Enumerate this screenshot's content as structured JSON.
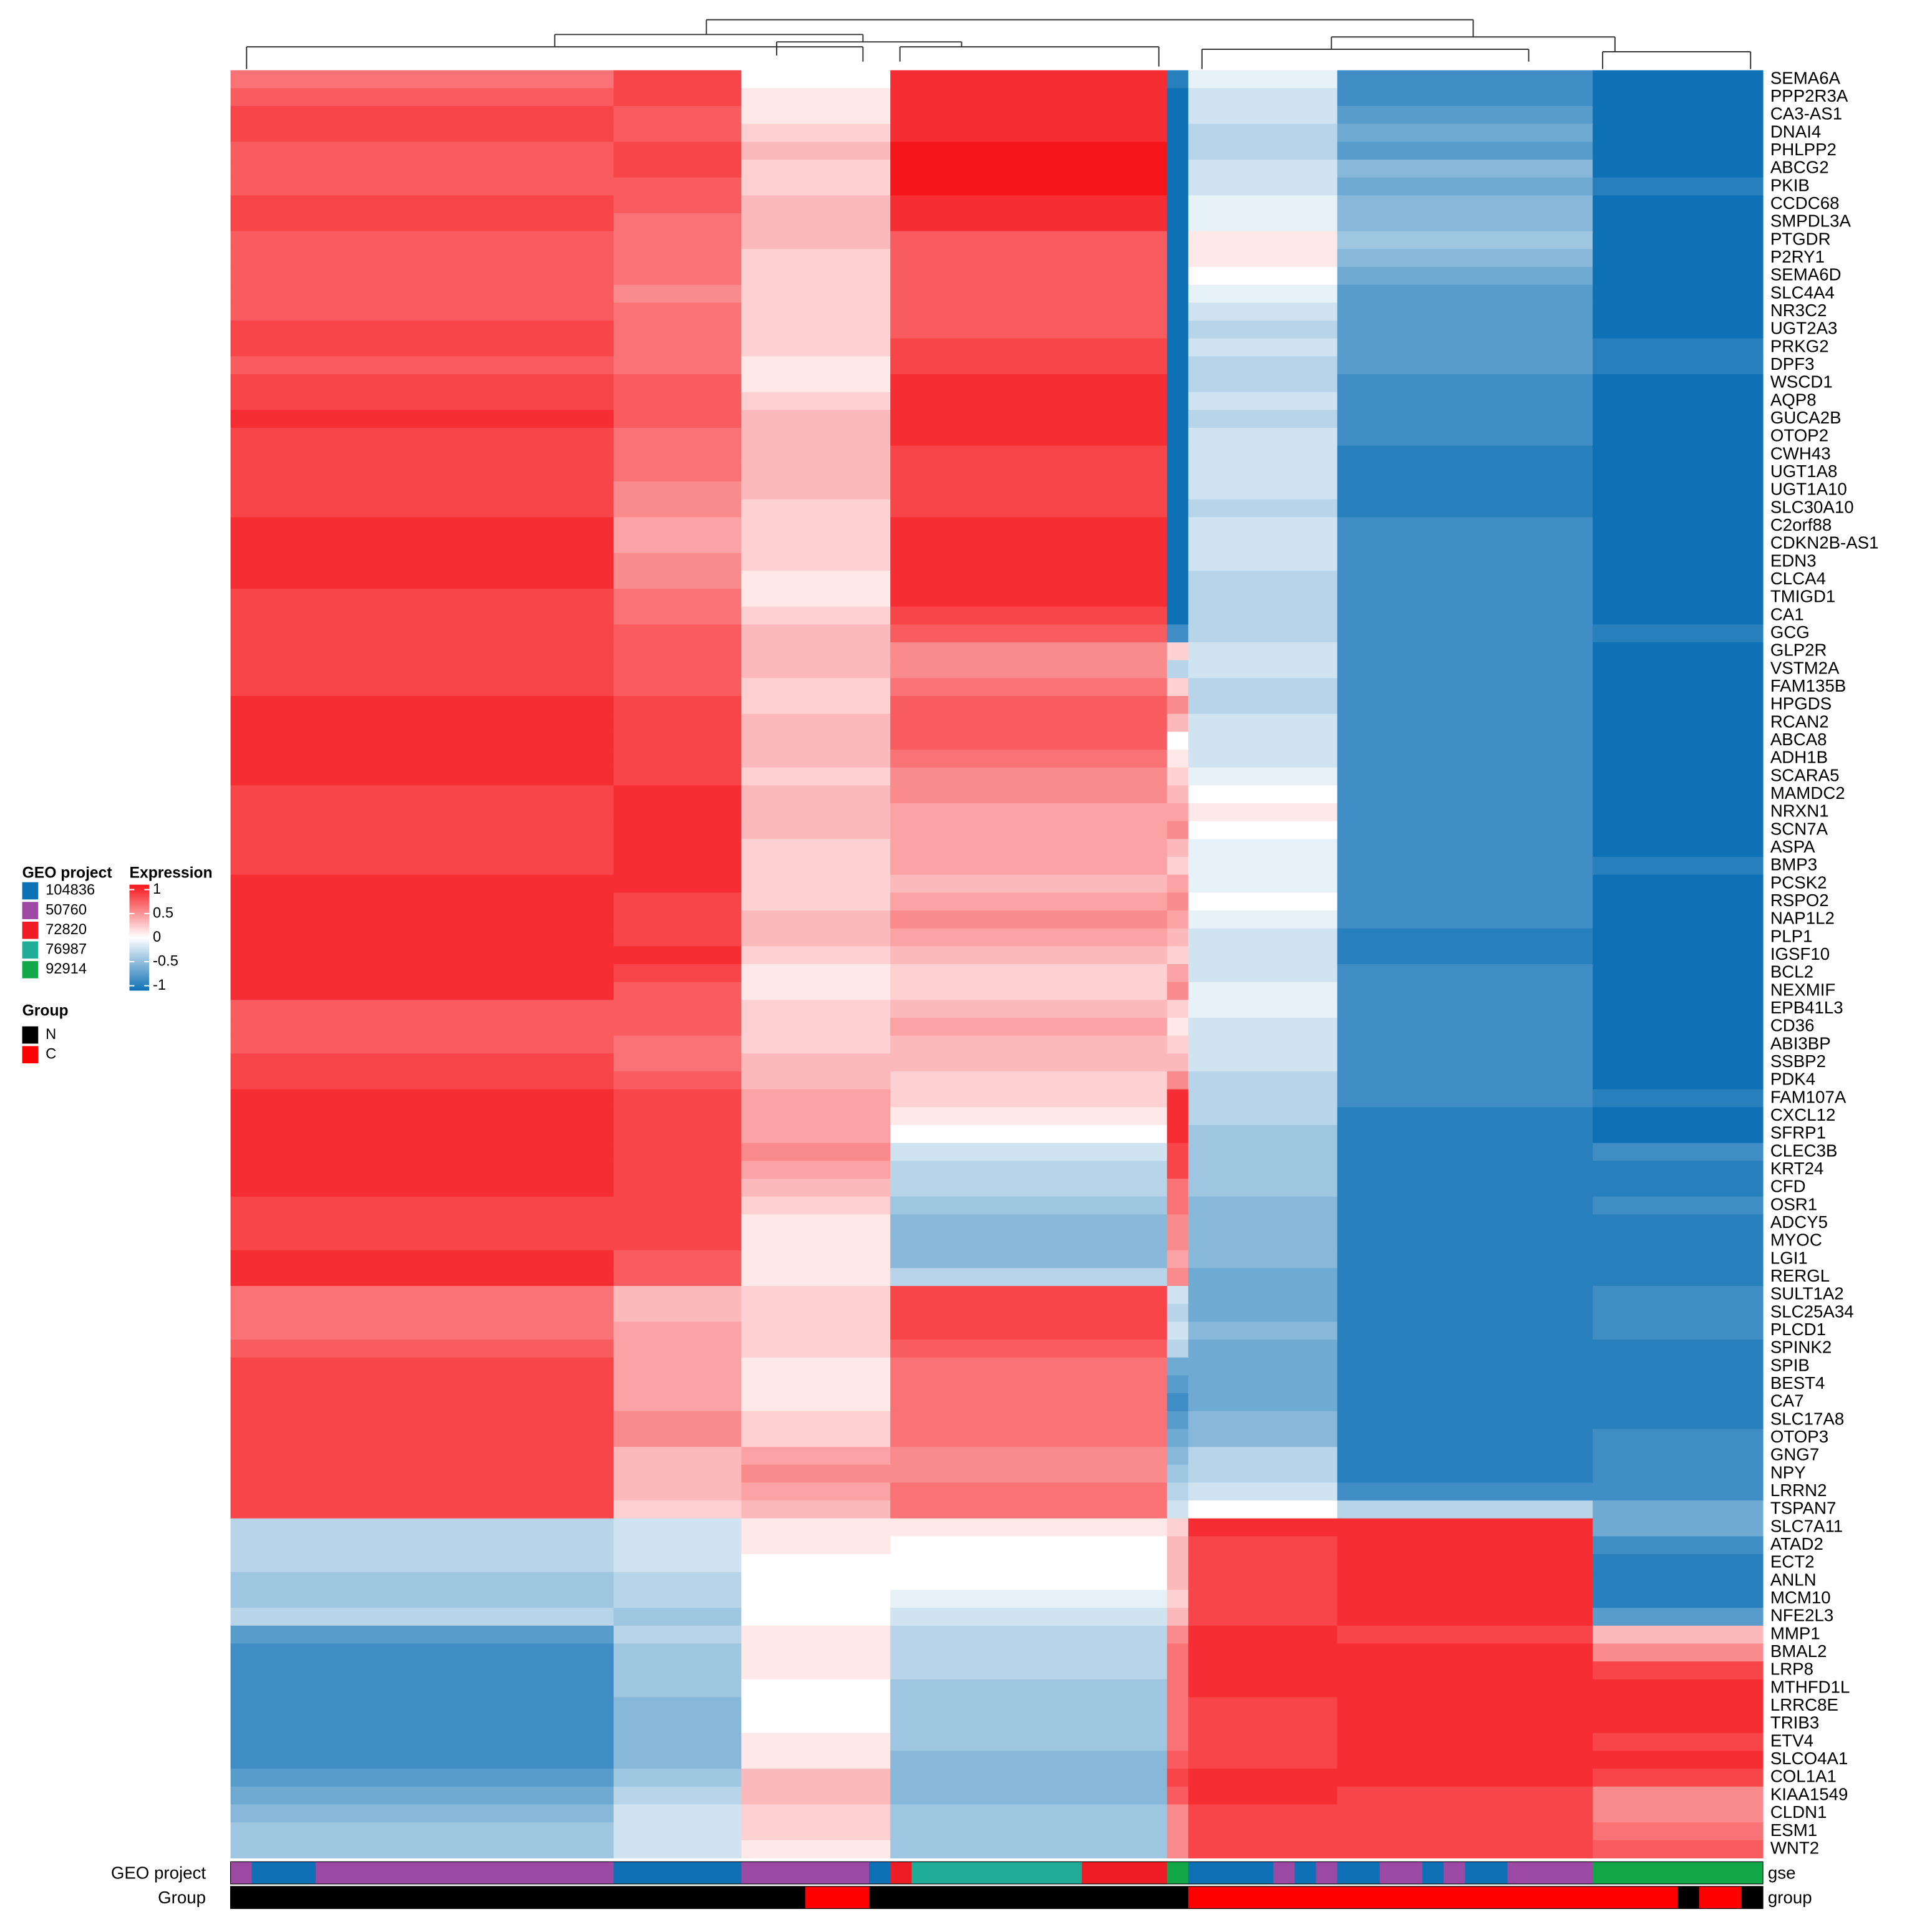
{
  "chart_data": {
    "type": "heatmap",
    "genes": [
      "SEMA6A",
      "PPP2R3A",
      "CA3-AS1",
      "DNAI4",
      "PHLPP2",
      "ABCG2",
      "PKIB",
      "CCDC68",
      "SMPDL3A",
      "PTGDR",
      "P2RY1",
      "SEMA6D",
      "SLC4A4",
      "NR3C2",
      "UGT2A3",
      "PRKG2",
      "DPF3",
      "WSCD1",
      "AQP8",
      "GUCA2B",
      "OTOP2",
      "CWH43",
      "UGT1A8",
      "UGT1A10",
      "SLC30A10",
      "C2orf88",
      "CDKN2B-AS1",
      "EDN3",
      "CLCA4",
      "TMIGD1",
      "CA1",
      "GCG",
      "GLP2R",
      "VSTM2A",
      "FAM135B",
      "HPGDS",
      "RCAN2",
      "ABCA8",
      "ADH1B",
      "SCARA5",
      "MAMDC2",
      "NRXN1",
      "SCN7A",
      "ASPA",
      "BMP3",
      "PCSK2",
      "RSPO2",
      "NAP1L2",
      "PLP1",
      "IGSF10",
      "BCL2",
      "NEXMIF",
      "EPB41L3",
      "CD36",
      "ABI3BP",
      "SSBP2",
      "PDK4",
      "FAM107A",
      "CXCL12",
      "SFRP1",
      "CLEC3B",
      "KRT24",
      "CFD",
      "OSR1",
      "ADCY5",
      "MYOC",
      "LGI1",
      "RERGL",
      "SULT1A2",
      "SLC25A34",
      "PLCD1",
      "SPINK2",
      "SPIB",
      "BEST4",
      "CA7",
      "SLC17A8",
      "OTOP3",
      "GNG7",
      "NPY",
      "LRRN2",
      "TSPAN7",
      "SLC7A11",
      "ATAD2",
      "ECT2",
      "ANLN",
      "MCM10",
      "NFE2L3",
      "MMP1",
      "BMAL2",
      "LRP8",
      "MTHFD1L",
      "LRRC8E",
      "TRIB3",
      "ETV4",
      "SLCO4A1",
      "COL1A1",
      "KIAA1549",
      "CLDN1",
      "ESM1",
      "WNT2"
    ],
    "column_blocks": [
      18,
      6,
      7,
      13,
      1,
      7,
      12,
      8
    ],
    "values": [
      [
        0.6,
        0.8,
        0.0,
        0.9,
        -0.9,
        -0.1,
        -0.8,
        -1
      ],
      [
        0.7,
        0.8,
        0.1,
        0.9,
        -1,
        -0.2,
        -0.8,
        -1
      ],
      [
        0.8,
        0.7,
        0.1,
        0.9,
        -1,
        -0.2,
        -0.7,
        -1
      ],
      [
        0.8,
        0.7,
        0.2,
        0.9,
        -1,
        -0.3,
        -0.6,
        -1
      ],
      [
        0.7,
        0.8,
        0.3,
        1,
        -1,
        -0.3,
        -0.7,
        -1
      ],
      [
        0.7,
        0.8,
        0.2,
        1,
        -1,
        -0.2,
        -0.5,
        -1
      ],
      [
        0.7,
        0.7,
        0.2,
        1,
        -1,
        -0.2,
        -0.6,
        -0.9
      ],
      [
        0.8,
        0.7,
        0.3,
        0.9,
        -1,
        -0.1,
        -0.5,
        -1
      ],
      [
        0.8,
        0.6,
        0.3,
        0.9,
        -1,
        -0.1,
        -0.5,
        -1
      ],
      [
        0.7,
        0.6,
        0.3,
        0.7,
        -1,
        0.1,
        -0.4,
        -1
      ],
      [
        0.7,
        0.6,
        0.2,
        0.7,
        -1,
        0.1,
        -0.5,
        -1
      ],
      [
        0.7,
        0.6,
        0.2,
        0.7,
        -1,
        0.0,
        -0.6,
        -1
      ],
      [
        0.7,
        0.5,
        0.2,
        0.7,
        -1,
        -0.1,
        -0.7,
        -1
      ],
      [
        0.7,
        0.6,
        0.2,
        0.7,
        -1,
        -0.2,
        -0.7,
        -1
      ],
      [
        0.8,
        0.6,
        0.2,
        0.7,
        -1,
        -0.3,
        -0.7,
        -1
      ],
      [
        0.8,
        0.6,
        0.2,
        0.8,
        -1,
        -0.2,
        -0.7,
        -0.9
      ],
      [
        0.7,
        0.6,
        0.1,
        0.8,
        -1,
        -0.3,
        -0.7,
        -0.9
      ],
      [
        0.8,
        0.7,
        0.1,
        0.9,
        -1,
        -0.3,
        -0.8,
        -1
      ],
      [
        0.8,
        0.7,
        0.2,
        0.9,
        -1,
        -0.2,
        -0.8,
        -1
      ],
      [
        0.9,
        0.7,
        0.3,
        0.9,
        -1,
        -0.3,
        -0.8,
        -1
      ],
      [
        0.8,
        0.6,
        0.3,
        0.9,
        -1,
        -0.2,
        -0.8,
        -1
      ],
      [
        0.8,
        0.6,
        0.3,
        0.8,
        -1,
        -0.2,
        -0.9,
        -1
      ],
      [
        0.8,
        0.6,
        0.3,
        0.8,
        -1,
        -0.2,
        -0.9,
        -1
      ],
      [
        0.8,
        0.5,
        0.3,
        0.8,
        -1,
        -0.2,
        -0.9,
        -1
      ],
      [
        0.8,
        0.5,
        0.2,
        0.8,
        -1,
        -0.3,
        -0.9,
        -1
      ],
      [
        0.9,
        0.4,
        0.2,
        0.9,
        -1,
        -0.2,
        -0.8,
        -1
      ],
      [
        0.9,
        0.4,
        0.2,
        0.9,
        -1,
        -0.2,
        -0.8,
        -1
      ],
      [
        0.9,
        0.5,
        0.2,
        0.9,
        -1,
        -0.2,
        -0.8,
        -1
      ],
      [
        0.9,
        0.5,
        0.1,
        0.9,
        -1,
        -0.3,
        -0.8,
        -1
      ],
      [
        0.8,
        0.6,
        0.1,
        0.9,
        -1,
        -0.3,
        -0.8,
        -1
      ],
      [
        0.8,
        0.6,
        0.2,
        0.8,
        -1,
        -0.3,
        -0.8,
        -1
      ],
      [
        0.8,
        0.7,
        0.3,
        0.7,
        -0.8,
        -0.3,
        -0.8,
        -0.9
      ],
      [
        0.8,
        0.7,
        0.3,
        0.5,
        0.2,
        -0.2,
        -0.8,
        -1
      ],
      [
        0.8,
        0.7,
        0.3,
        0.5,
        -0.3,
        -0.2,
        -0.8,
        -1
      ],
      [
        0.8,
        0.7,
        0.2,
        0.6,
        0.2,
        -0.3,
        -0.8,
        -1
      ],
      [
        0.9,
        0.8,
        0.2,
        0.7,
        0.5,
        -0.3,
        -0.8,
        -1
      ],
      [
        0.9,
        0.8,
        0.3,
        0.7,
        0.3,
        -0.2,
        -0.8,
        -1
      ],
      [
        0.9,
        0.8,
        0.3,
        0.7,
        0.0,
        -0.2,
        -0.8,
        -1
      ],
      [
        0.9,
        0.8,
        0.3,
        0.6,
        0.1,
        -0.2,
        -0.8,
        -1
      ],
      [
        0.9,
        0.8,
        0.2,
        0.5,
        0.2,
        -0.1,
        -0.8,
        -1
      ],
      [
        0.8,
        0.9,
        0.3,
        0.5,
        0.3,
        0.0,
        -0.8,
        -1
      ],
      [
        0.8,
        0.9,
        0.3,
        0.4,
        0.4,
        0.1,
        -0.8,
        -1
      ],
      [
        0.8,
        0.9,
        0.3,
        0.4,
        0.5,
        0.0,
        -0.8,
        -1
      ],
      [
        0.8,
        0.9,
        0.2,
        0.4,
        0.3,
        -0.1,
        -0.8,
        -1
      ],
      [
        0.8,
        0.9,
        0.2,
        0.4,
        0.2,
        -0.1,
        -0.8,
        -0.9
      ],
      [
        0.9,
        0.9,
        0.2,
        0.3,
        0.4,
        -0.1,
        -0.8,
        -1
      ],
      [
        0.9,
        0.8,
        0.2,
        0.4,
        0.5,
        0.0,
        -0.8,
        -1
      ],
      [
        0.9,
        0.8,
        0.3,
        0.5,
        0.4,
        -0.1,
        -0.8,
        -1
      ],
      [
        0.9,
        0.8,
        0.3,
        0.4,
        0.3,
        -0.2,
        -0.9,
        -1
      ],
      [
        0.9,
        0.9,
        0.2,
        0.3,
        0.2,
        -0.2,
        -0.9,
        -1
      ],
      [
        0.9,
        0.8,
        0.1,
        0.2,
        0.4,
        -0.2,
        -0.8,
        -1
      ],
      [
        0.9,
        0.7,
        0.1,
        0.2,
        0.5,
        -0.1,
        -0.8,
        -1
      ],
      [
        0.7,
        0.7,
        0.2,
        0.3,
        0.2,
        -0.1,
        -0.8,
        -1
      ],
      [
        0.7,
        0.7,
        0.2,
        0.4,
        0.1,
        -0.2,
        -0.8,
        -1
      ],
      [
        0.7,
        0.6,
        0.2,
        0.3,
        0.2,
        -0.2,
        -0.8,
        -1
      ],
      [
        0.8,
        0.6,
        0.3,
        0.3,
        0.3,
        -0.2,
        -0.8,
        -1
      ],
      [
        0.8,
        0.7,
        0.3,
        0.2,
        0.5,
        -0.3,
        -0.8,
        -1
      ],
      [
        0.9,
        0.8,
        0.4,
        0.2,
        0.9,
        -0.3,
        -0.8,
        -0.9
      ],
      [
        0.9,
        0.8,
        0.4,
        0.1,
        0.9,
        -0.3,
        -0.9,
        -1
      ],
      [
        0.9,
        0.8,
        0.4,
        0.0,
        0.9,
        -0.4,
        -0.9,
        -1
      ],
      [
        0.9,
        0.8,
        0.5,
        -0.2,
        0.8,
        -0.4,
        -0.9,
        -0.8
      ],
      [
        0.9,
        0.8,
        0.4,
        -0.3,
        0.8,
        -0.4,
        -0.9,
        -0.9
      ],
      [
        0.9,
        0.8,
        0.3,
        -0.3,
        0.6,
        -0.4,
        -0.9,
        -0.9
      ],
      [
        0.8,
        0.8,
        0.2,
        -0.4,
        0.6,
        -0.5,
        -0.9,
        -0.8
      ],
      [
        0.8,
        0.8,
        0.1,
        -0.5,
        0.5,
        -0.5,
        -0.9,
        -0.9
      ],
      [
        0.8,
        0.8,
        0.1,
        -0.5,
        0.5,
        -0.5,
        -0.9,
        -0.9
      ],
      [
        0.9,
        0.7,
        0.1,
        -0.5,
        0.4,
        -0.5,
        -0.9,
        -0.9
      ],
      [
        0.9,
        0.7,
        0.1,
        -0.3,
        0.5,
        -0.6,
        -0.9,
        -0.9
      ],
      [
        0.6,
        0.3,
        0.2,
        0.8,
        -0.2,
        -0.6,
        -0.9,
        -0.8
      ],
      [
        0.6,
        0.3,
        0.2,
        0.8,
        -0.3,
        -0.6,
        -0.9,
        -0.8
      ],
      [
        0.6,
        0.4,
        0.2,
        0.8,
        -0.2,
        -0.5,
        -0.9,
        -0.8
      ],
      [
        0.7,
        0.4,
        0.2,
        0.7,
        -0.3,
        -0.6,
        -0.9,
        -0.9
      ],
      [
        0.8,
        0.4,
        0.1,
        0.6,
        -0.6,
        -0.6,
        -0.9,
        -0.9
      ],
      [
        0.8,
        0.4,
        0.1,
        0.6,
        -0.7,
        -0.6,
        -0.9,
        -0.9
      ],
      [
        0.8,
        0.4,
        0.1,
        0.6,
        -0.8,
        -0.6,
        -0.9,
        -0.9
      ],
      [
        0.8,
        0.5,
        0.2,
        0.6,
        -0.7,
        -0.5,
        -0.9,
        -0.9
      ],
      [
        0.8,
        0.5,
        0.2,
        0.6,
        -0.6,
        -0.5,
        -0.9,
        -0.8
      ],
      [
        0.8,
        0.3,
        0.4,
        0.5,
        -0.5,
        -0.3,
        -0.9,
        -0.8
      ],
      [
        0.8,
        0.3,
        0.5,
        0.5,
        -0.4,
        -0.3,
        -0.9,
        -0.8
      ],
      [
        0.8,
        0.3,
        0.4,
        0.6,
        -0.3,
        -0.2,
        -0.8,
        -0.8
      ],
      [
        0.8,
        0.2,
        0.3,
        0.6,
        -0.2,
        0.0,
        -0.3,
        -0.6
      ],
      [
        -0.3,
        -0.2,
        0.1,
        0.1,
        0.2,
        0.9,
        0.9,
        -0.6
      ],
      [
        -0.3,
        -0.2,
        0.1,
        0.0,
        0.3,
        0.8,
        0.9,
        -0.8
      ],
      [
        -0.3,
        -0.2,
        0.0,
        0.0,
        0.3,
        0.8,
        0.9,
        -0.9
      ],
      [
        -0.4,
        -0.3,
        0.0,
        0.0,
        0.3,
        0.8,
        0.9,
        -0.9
      ],
      [
        -0.4,
        -0.3,
        0.0,
        -0.1,
        0.2,
        0.8,
        0.9,
        -0.9
      ],
      [
        -0.3,
        -0.4,
        0.0,
        -0.2,
        0.3,
        0.8,
        0.9,
        -0.7
      ],
      [
        -0.7,
        -0.3,
        0.1,
        -0.3,
        0.5,
        0.9,
        0.8,
        0.3
      ],
      [
        -0.8,
        -0.4,
        0.1,
        -0.3,
        0.6,
        0.9,
        0.9,
        0.5
      ],
      [
        -0.8,
        -0.4,
        0.1,
        -0.3,
        0.6,
        0.9,
        0.9,
        0.8
      ],
      [
        -0.8,
        -0.4,
        0.0,
        -0.4,
        0.6,
        0.9,
        0.9,
        0.9
      ],
      [
        -0.8,
        -0.5,
        0.0,
        -0.4,
        0.6,
        0.8,
        0.9,
        0.9
      ],
      [
        -0.8,
        -0.5,
        0.0,
        -0.4,
        0.6,
        0.8,
        0.9,
        0.9
      ],
      [
        -0.8,
        -0.5,
        0.1,
        -0.4,
        0.6,
        0.8,
        0.9,
        0.8
      ],
      [
        -0.8,
        -0.5,
        0.1,
        -0.5,
        0.7,
        0.8,
        0.9,
        0.9
      ],
      [
        -0.7,
        -0.4,
        0.3,
        -0.5,
        0.8,
        0.9,
        0.9,
        0.8
      ],
      [
        -0.6,
        -0.3,
        0.3,
        -0.5,
        0.7,
        0.9,
        0.8,
        0.5
      ],
      [
        -0.5,
        -0.2,
        0.2,
        -0.4,
        0.5,
        0.8,
        0.8,
        0.5
      ],
      [
        -0.4,
        -0.2,
        0.2,
        -0.4,
        0.5,
        0.8,
        0.8,
        0.6
      ],
      [
        -0.4,
        -0.2,
        0.1,
        -0.4,
        0.5,
        0.8,
        0.8,
        0.7
      ]
    ],
    "color_scale": {
      "title": "Expression",
      "lim": [
        -1,
        1
      ],
      "ticks": [
        1,
        0.5,
        0,
        -0.5,
        -1
      ],
      "colors": [
        "#0f71b5",
        "#ffffff",
        "#f5161b"
      ]
    },
    "annotations": [
      {
        "label": "GEO project",
        "key": "gse",
        "legend_title": "GEO project",
        "levels": [
          {
            "name": "104836",
            "color": "#0f71b5"
          },
          {
            "name": "50760",
            "color": "#9c49a4"
          },
          {
            "name": "72820",
            "color": "#ee1c24"
          },
          {
            "name": "76987",
            "color": "#20ad98"
          },
          {
            "name": "92914",
            "color": "#12a748"
          }
        ],
        "segments": [
          {
            "level": "50760",
            "n": 1
          },
          {
            "level": "104836",
            "n": 3
          },
          {
            "level": "50760",
            "n": 14
          },
          {
            "level": "104836",
            "n": 6
          },
          {
            "level": "50760",
            "n": 6
          },
          {
            "level": "104836",
            "n": 1
          },
          {
            "level": "72820",
            "n": 1
          },
          {
            "level": "76987",
            "n": 8
          },
          {
            "level": "72820",
            "n": 4
          },
          {
            "level": "92914",
            "n": 1
          },
          {
            "level": "104836",
            "n": 4
          },
          {
            "level": "50760",
            "n": 1
          },
          {
            "level": "104836",
            "n": 1
          },
          {
            "level": "50760",
            "n": 1
          },
          {
            "level": "104836",
            "n": 2
          },
          {
            "level": "50760",
            "n": 2
          },
          {
            "level": "104836",
            "n": 1
          },
          {
            "level": "50760",
            "n": 1
          },
          {
            "level": "104836",
            "n": 2
          },
          {
            "level": "50760",
            "n": 4
          },
          {
            "level": "92914",
            "n": 8
          }
        ]
      },
      {
        "label": "Group",
        "key": "group",
        "legend_title": "Group",
        "levels": [
          {
            "name": "N",
            "color": "#000000"
          },
          {
            "name": "C",
            "color": "#ff0000"
          }
        ],
        "segments": [
          {
            "level": "N",
            "n": 27
          },
          {
            "level": "C",
            "n": 3
          },
          {
            "level": "N",
            "n": 15
          },
          {
            "level": "C",
            "n": 23
          },
          {
            "level": "N",
            "n": 1
          },
          {
            "level": "C",
            "n": 2
          },
          {
            "level": "N",
            "n": 1
          }
        ]
      }
    ]
  }
}
